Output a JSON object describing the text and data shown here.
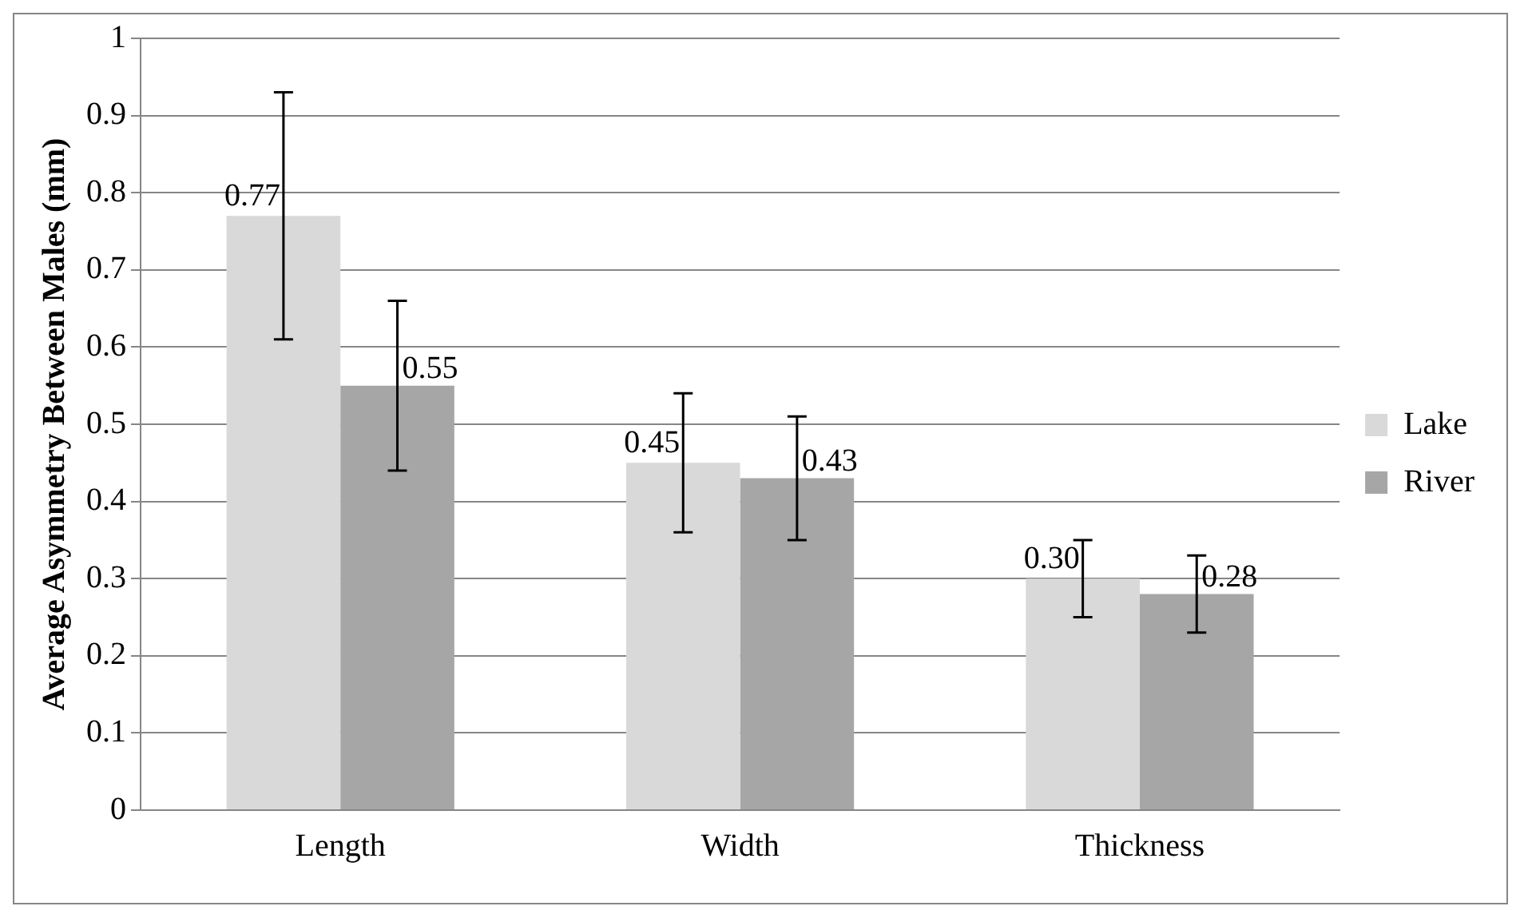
{
  "chart_data": {
    "type": "bar",
    "ylabel": "Average Asymmetry Between Males (mm)",
    "categories": [
      "Length",
      "Width",
      "Thickness"
    ],
    "series": [
      {
        "name": "Lake",
        "color": "#d9d9d9",
        "values": [
          0.77,
          0.45,
          0.3
        ],
        "errors": [
          0.16,
          0.09,
          0.05
        ],
        "value_labels": [
          "0.77",
          "0.45",
          "0.30"
        ]
      },
      {
        "name": "River",
        "color": "#a6a6a6",
        "values": [
          0.55,
          0.43,
          0.28
        ],
        "errors": [
          0.11,
          0.08,
          0.05
        ],
        "value_labels": [
          "0.55",
          "0.43",
          "0.28"
        ]
      }
    ],
    "ylim": [
      0,
      1
    ],
    "yticks": [
      0,
      0.1,
      0.2,
      0.3,
      0.4,
      0.5,
      0.6,
      0.7,
      0.8,
      0.9,
      1
    ],
    "grid": "y",
    "legend": "right"
  }
}
